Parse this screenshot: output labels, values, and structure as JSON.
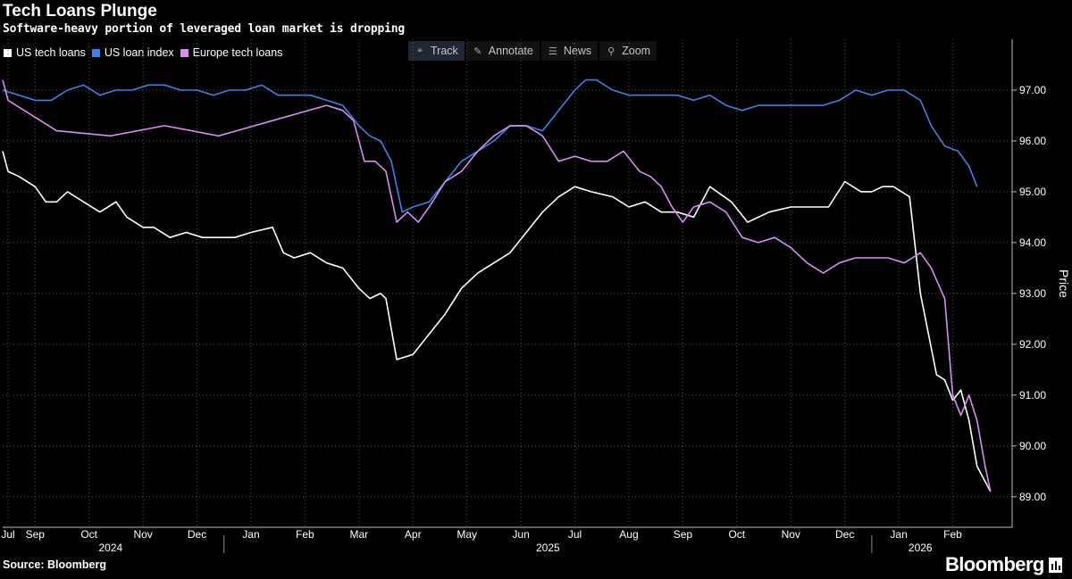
{
  "header": {
    "title": "Tech Loans Plunge",
    "subtitle": "Software-heavy portion of leveraged loan market is dropping"
  },
  "legend": [
    {
      "label": "US tech loans",
      "color": "#ffffff"
    },
    {
      "label": "US loan index",
      "color": "#3b82e8"
    },
    {
      "label": "Europe tech loans",
      "color": "#d98cf2"
    }
  ],
  "toolbar": {
    "track": "Track",
    "annotate": "Annotate",
    "news": "News",
    "zoom": "Zoom"
  },
  "footer": {
    "source": "Source: Bloomberg",
    "brand": "Bloomberg"
  },
  "chart_data": {
    "type": "line",
    "title": "Tech Loans Plunge",
    "xlabel": "",
    "ylabel": "Price",
    "ylim": [
      88.4,
      98.0
    ],
    "yticks": [
      89.0,
      90.0,
      91.0,
      92.0,
      93.0,
      94.0,
      95.0,
      96.0,
      97.0
    ],
    "ytick_labels": [
      "89.00",
      "90.00",
      "91.00",
      "92.00",
      "93.00",
      "94.00",
      "95.00",
      "96.00",
      "97.00"
    ],
    "grid": true,
    "x_range": [
      0,
      18.7
    ],
    "month_ticks": [
      {
        "label": "Jul",
        "x": 0.1
      },
      {
        "label": "Sep",
        "x": 0.6
      },
      {
        "label": "Oct",
        "x": 1.6
      },
      {
        "label": "Nov",
        "x": 2.6
      },
      {
        "label": "Dec",
        "x": 3.6
      },
      {
        "label": "Jan",
        "x": 4.6
      },
      {
        "label": "Feb",
        "x": 5.6
      },
      {
        "label": "Mar",
        "x": 6.6
      },
      {
        "label": "Apr",
        "x": 7.6
      },
      {
        "label": "May",
        "x": 8.6
      },
      {
        "label": "Jun",
        "x": 9.6
      },
      {
        "label": "Jul",
        "x": 10.6
      },
      {
        "label": "Aug",
        "x": 11.6
      },
      {
        "label": "Sep",
        "x": 12.6
      },
      {
        "label": "Oct",
        "x": 13.6
      },
      {
        "label": "Nov",
        "x": 14.6
      },
      {
        "label": "Dec",
        "x": 15.6
      },
      {
        "label": "Jan",
        "x": 16.6
      },
      {
        "label": "Feb",
        "x": 17.6
      }
    ],
    "year_ticks": [
      {
        "label": "2024",
        "x": 2.0
      },
      {
        "label": "2025",
        "x": 10.1
      },
      {
        "label": "2026",
        "x": 17.0
      }
    ],
    "year_separators": [
      4.1,
      16.1
    ],
    "series": [
      {
        "name": "US tech loans",
        "color": "#ffffff",
        "x": [
          0.0,
          0.1,
          0.3,
          0.6,
          0.8,
          1.0,
          1.2,
          1.5,
          1.8,
          2.1,
          2.3,
          2.6,
          2.8,
          3.1,
          3.4,
          3.7,
          4.0,
          4.3,
          4.6,
          5.0,
          5.2,
          5.4,
          5.7,
          6.0,
          6.3,
          6.6,
          6.8,
          7.0,
          7.1,
          7.3,
          7.6,
          7.9,
          8.2,
          8.5,
          8.8,
          9.1,
          9.4,
          9.7,
          10.0,
          10.3,
          10.6,
          10.9,
          11.3,
          11.6,
          11.9,
          12.2,
          12.5,
          12.8,
          13.1,
          13.5,
          13.8,
          14.2,
          14.6,
          15.0,
          15.3,
          15.6,
          15.9,
          16.1,
          16.3,
          16.5,
          16.8,
          17.0,
          17.3,
          17.45,
          17.6,
          17.75,
          17.9,
          18.05,
          18.2,
          18.3
        ],
        "values": [
          95.8,
          95.4,
          95.3,
          95.1,
          94.8,
          94.8,
          95.0,
          94.8,
          94.6,
          94.8,
          94.5,
          94.3,
          94.3,
          94.1,
          94.2,
          94.1,
          94.1,
          94.1,
          94.2,
          94.3,
          93.8,
          93.7,
          93.8,
          93.6,
          93.5,
          93.1,
          92.9,
          93.0,
          92.9,
          91.7,
          91.8,
          92.2,
          92.6,
          93.1,
          93.4,
          93.6,
          93.8,
          94.2,
          94.6,
          94.9,
          95.1,
          95.0,
          94.9,
          94.7,
          94.8,
          94.6,
          94.6,
          94.5,
          95.1,
          94.8,
          94.4,
          94.6,
          94.7,
          94.7,
          94.7,
          95.2,
          95.0,
          95.0,
          95.1,
          95.1,
          94.9,
          93.0,
          91.4,
          91.3,
          90.9,
          91.1,
          90.5,
          89.6,
          89.3,
          89.1
        ]
      },
      {
        "name": "US loan index",
        "color": "#3b82e8",
        "x": [
          0.0,
          0.3,
          0.6,
          0.9,
          1.2,
          1.5,
          1.8,
          2.1,
          2.4,
          2.7,
          3.0,
          3.3,
          3.6,
          3.9,
          4.2,
          4.5,
          4.8,
          5.1,
          5.4,
          5.7,
          6.0,
          6.3,
          6.6,
          6.8,
          7.0,
          7.2,
          7.4,
          7.6,
          7.9,
          8.2,
          8.5,
          8.8,
          9.1,
          9.4,
          9.7,
          10.0,
          10.3,
          10.6,
          10.8,
          11.0,
          11.3,
          11.6,
          11.9,
          12.2,
          12.5,
          12.8,
          13.1,
          13.4,
          13.7,
          14.0,
          14.3,
          14.6,
          14.9,
          15.2,
          15.5,
          15.8,
          16.1,
          16.4,
          16.7,
          17.0,
          17.2,
          17.45,
          17.7,
          17.9,
          18.05
        ],
        "values": [
          97.0,
          96.9,
          96.8,
          96.8,
          97.0,
          97.1,
          96.9,
          97.0,
          97.0,
          97.1,
          97.1,
          97.0,
          97.0,
          96.9,
          97.0,
          97.0,
          97.1,
          96.9,
          96.9,
          96.9,
          96.8,
          96.7,
          96.3,
          96.1,
          96.0,
          95.6,
          94.6,
          94.7,
          94.8,
          95.2,
          95.6,
          95.8,
          96.0,
          96.3,
          96.3,
          96.2,
          96.6,
          97.0,
          97.2,
          97.2,
          97.0,
          96.9,
          96.9,
          96.9,
          96.9,
          96.8,
          96.9,
          96.7,
          96.6,
          96.7,
          96.7,
          96.7,
          96.7,
          96.7,
          96.8,
          97.0,
          96.9,
          97.0,
          97.0,
          96.8,
          96.3,
          95.9,
          95.8,
          95.5,
          95.1
        ]
      },
      {
        "name": "Europe tech loans",
        "color": "#d98cf2",
        "x": [
          0.0,
          0.1,
          1.0,
          2.0,
          3.0,
          4.0,
          5.0,
          6.0,
          6.3,
          6.5,
          6.7,
          6.9,
          7.1,
          7.3,
          7.5,
          7.7,
          7.9,
          8.2,
          8.5,
          8.8,
          9.1,
          9.4,
          9.7,
          10.0,
          10.3,
          10.6,
          10.9,
          11.2,
          11.5,
          11.8,
          12.0,
          12.2,
          12.4,
          12.6,
          12.8,
          13.1,
          13.4,
          13.7,
          14.0,
          14.3,
          14.6,
          14.9,
          15.2,
          15.5,
          15.8,
          16.1,
          16.4,
          16.7,
          17.0,
          17.2,
          17.45,
          17.6,
          17.75,
          17.9,
          18.05,
          18.2,
          18.3
        ],
        "values": [
          97.2,
          96.8,
          96.2,
          96.1,
          96.3,
          96.1,
          96.4,
          96.7,
          96.6,
          96.4,
          95.6,
          95.6,
          95.4,
          94.4,
          94.6,
          94.4,
          94.7,
          95.2,
          95.4,
          95.8,
          96.1,
          96.3,
          96.3,
          96.1,
          95.6,
          95.7,
          95.6,
          95.6,
          95.8,
          95.4,
          95.3,
          95.1,
          94.7,
          94.4,
          94.7,
          94.8,
          94.6,
          94.1,
          94.0,
          94.1,
          93.9,
          93.6,
          93.4,
          93.6,
          93.7,
          93.7,
          93.7,
          93.6,
          93.8,
          93.5,
          92.9,
          91.0,
          90.6,
          91.0,
          90.5,
          89.6,
          89.1
        ]
      }
    ]
  }
}
